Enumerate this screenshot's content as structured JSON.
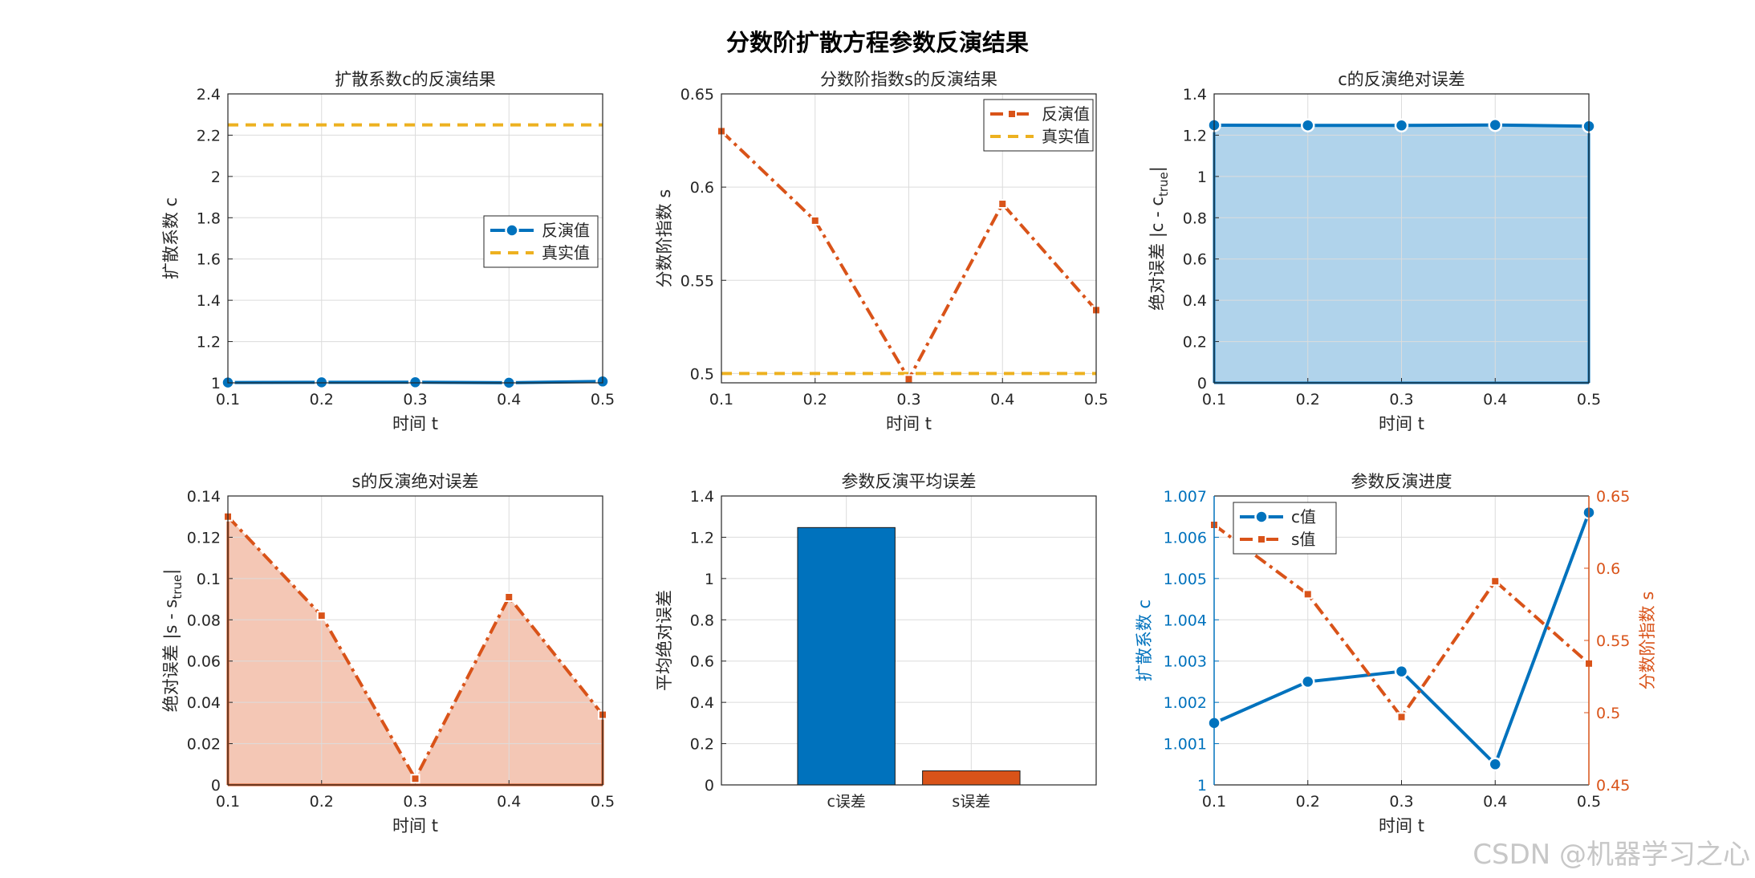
{
  "figure": {
    "suptitle": "分数阶扩散方程参数反演结果",
    "watermark": "CSDN @机器学习之心"
  },
  "colors": {
    "blue": "#0072BD",
    "orange": "#D95319",
    "yellow": "#EDB120",
    "blue_fill": "#B0D3EB",
    "orange_fill": "#F4C7B5"
  },
  "chart_data": [
    {
      "id": "c",
      "type": "line",
      "title": "扩散系数c的反演结果",
      "xlabel": "时间 t",
      "ylabel": "扩散系数 c",
      "x": [
        0.1,
        0.2,
        0.3,
        0.4,
        0.5
      ],
      "xlim": [
        0.1,
        0.5
      ],
      "ylim": [
        1.0,
        2.4
      ],
      "xticks": [
        "0.1",
        "0.2",
        "0.3",
        "0.4",
        "0.5"
      ],
      "yticks": [
        "1",
        "1.2",
        "1.4",
        "1.6",
        "1.8",
        "2",
        "2.2",
        "2.4"
      ],
      "grid": true,
      "legend": "right",
      "series": [
        {
          "name": "反演值",
          "values": [
            1.0015,
            1.0025,
            1.0028,
            1.0005,
            1.0066
          ],
          "style": "solid-circle",
          "color": "blue"
        },
        {
          "name": "真实值",
          "values": [
            2.25,
            2.25,
            2.25,
            2.25,
            2.25
          ],
          "style": "dashed",
          "color": "yellow"
        }
      ]
    },
    {
      "id": "s",
      "type": "line",
      "title": "分数阶指数s的反演结果",
      "xlabel": "时间 t",
      "ylabel": "分数阶指数 s",
      "x": [
        0.1,
        0.2,
        0.3,
        0.4,
        0.5
      ],
      "xlim": [
        0.1,
        0.5
      ],
      "ylim": [
        0.495,
        0.65
      ],
      "xticks": [
        "0.1",
        "0.2",
        "0.3",
        "0.4",
        "0.5"
      ],
      "yticks": [
        "0.5",
        "0.55",
        "0.6",
        "0.65"
      ],
      "grid": true,
      "legend": "top-right",
      "series": [
        {
          "name": "反演值",
          "values": [
            0.63,
            0.582,
            0.497,
            0.591,
            0.534
          ],
          "style": "dashdot-square",
          "color": "orange"
        },
        {
          "name": "真实值",
          "values": [
            0.5,
            0.5,
            0.5,
            0.5,
            0.5
          ],
          "style": "dashed",
          "color": "yellow"
        }
      ]
    },
    {
      "id": "cerr",
      "type": "area",
      "title": "c的反演绝对误差",
      "xlabel": "时间 t",
      "ylabel": "绝对误差 |c - c_true|",
      "x": [
        0.1,
        0.2,
        0.3,
        0.4,
        0.5
      ],
      "xlim": [
        0.1,
        0.5
      ],
      "ylim": [
        0,
        1.4
      ],
      "xticks": [
        "0.1",
        "0.2",
        "0.3",
        "0.4",
        "0.5"
      ],
      "yticks": [
        "0",
        "0.2",
        "0.4",
        "0.6",
        "0.8",
        "1",
        "1.2",
        "1.4"
      ],
      "grid": true,
      "series": [
        {
          "values": [
            1.2485,
            1.2475,
            1.2472,
            1.2495,
            1.2434
          ],
          "style": "solid-circle",
          "color": "blue"
        }
      ]
    },
    {
      "id": "serr",
      "type": "area",
      "title": "s的反演绝对误差",
      "xlabel": "时间 t",
      "ylabel": "绝对误差 |s - s_true|",
      "x": [
        0.1,
        0.2,
        0.3,
        0.4,
        0.5
      ],
      "xlim": [
        0.1,
        0.5
      ],
      "ylim": [
        0,
        0.14
      ],
      "xticks": [
        "0.1",
        "0.2",
        "0.3",
        "0.4",
        "0.5"
      ],
      "yticks": [
        "0",
        "0.02",
        "0.04",
        "0.06",
        "0.08",
        "0.1",
        "0.12",
        "0.14"
      ],
      "grid": true,
      "series": [
        {
          "values": [
            0.13,
            0.082,
            0.003,
            0.091,
            0.034
          ],
          "style": "dashdot-square",
          "color": "orange"
        }
      ]
    },
    {
      "id": "mean",
      "type": "bar",
      "title": "参数反演平均误差",
      "xlabel": "",
      "ylabel": "平均绝对误差",
      "categories": [
        "c误差",
        "s误差"
      ],
      "values": [
        1.247,
        0.068
      ],
      "ylim": [
        0,
        1.4
      ],
      "yticks": [
        "0",
        "0.2",
        "0.4",
        "0.6",
        "0.8",
        "1",
        "1.2",
        "1.4"
      ],
      "grid": true,
      "colors": [
        "blue",
        "orange"
      ]
    },
    {
      "id": "progress",
      "type": "line",
      "title": "参数反演进度",
      "xlabel": "时间 t",
      "ylabel_left": "扩散系数 c",
      "ylabel_right": "分数阶指数 s",
      "x": [
        0.1,
        0.2,
        0.3,
        0.4,
        0.5
      ],
      "xlim": [
        0.1,
        0.5
      ],
      "ylim_left": [
        1.0,
        1.007
      ],
      "ylim_right": [
        0.45,
        0.65
      ],
      "xticks": [
        "0.1",
        "0.2",
        "0.3",
        "0.4",
        "0.5"
      ],
      "yticks_left": [
        "1",
        "1.001",
        "1.002",
        "1.003",
        "1.004",
        "1.005",
        "1.006",
        "1.007"
      ],
      "yticks_right": [
        "0.45",
        "0.5",
        "0.55",
        "0.6",
        "0.65"
      ],
      "grid": true,
      "legend": "top-left",
      "series": [
        {
          "name": "c值",
          "axis": "left",
          "values": [
            1.0015,
            1.0025,
            1.00275,
            1.0005,
            1.0066
          ],
          "style": "solid-circle",
          "color": "blue"
        },
        {
          "name": "s值",
          "axis": "right",
          "values": [
            0.63,
            0.582,
            0.497,
            0.591,
            0.534
          ],
          "style": "dashdot-square",
          "color": "orange"
        }
      ]
    }
  ]
}
